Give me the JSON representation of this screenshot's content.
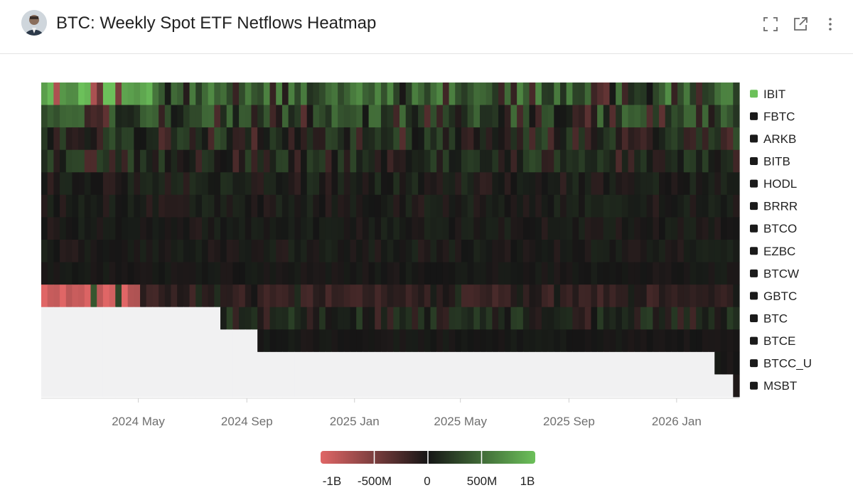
{
  "header": {
    "title": "BTC: Weekly Spot ETF Netflows Heatmap",
    "icons": [
      "expand-icon",
      "open-external-icon",
      "more-vertical-icon"
    ]
  },
  "colors": {
    "positive": "#6cc05a",
    "negative": "#e06666",
    "neutral": "#151515",
    "no_data": "#f1f1f2",
    "legend_marker_ibit": "#6cc05a",
    "legend_marker_other": "#1a1a1a"
  },
  "chart_data": {
    "type": "heatmap",
    "title": "BTC: Weekly Spot ETF Netflows Heatmap",
    "series_labels": [
      "IBIT",
      "FBTC",
      "ARKB",
      "BITB",
      "HODL",
      "BRRR",
      "BTCO",
      "EZBC",
      "BTCW",
      "GBTC",
      "BTC",
      "BTCE",
      "BTCC_U",
      "MSBT"
    ],
    "x_ticks": [
      "2024 May",
      "2024 Sep",
      "2025 Jan",
      "2025 May",
      "2025 Sep",
      "2026 Jan"
    ],
    "x_range": [
      "2024-01-12",
      "2026-03-13"
    ],
    "tick_dates": [
      "2024-05-01",
      "2024-09-01",
      "2025-01-01",
      "2025-05-01",
      "2025-09-01",
      "2026-01-01"
    ],
    "series_start": {
      "BTC": "2024-08-02",
      "BTCE": "2024-09-13",
      "BTCC_U": "2026-02-13",
      "MSBT": "2026-03-06"
    },
    "value_range": [
      -1000000000,
      1000000000
    ],
    "colorbar_ticks": [
      "-1B",
      "-500M",
      "0",
      "500M",
      "1B"
    ],
    "legend_position": "right",
    "grid": false,
    "intensity_profile": {
      "IBIT": "mostly strong inflows, several outflow weeks in 2025 and 2026",
      "GBTC": "strong outflows early 2024, moderate outflows thereafter"
    }
  }
}
